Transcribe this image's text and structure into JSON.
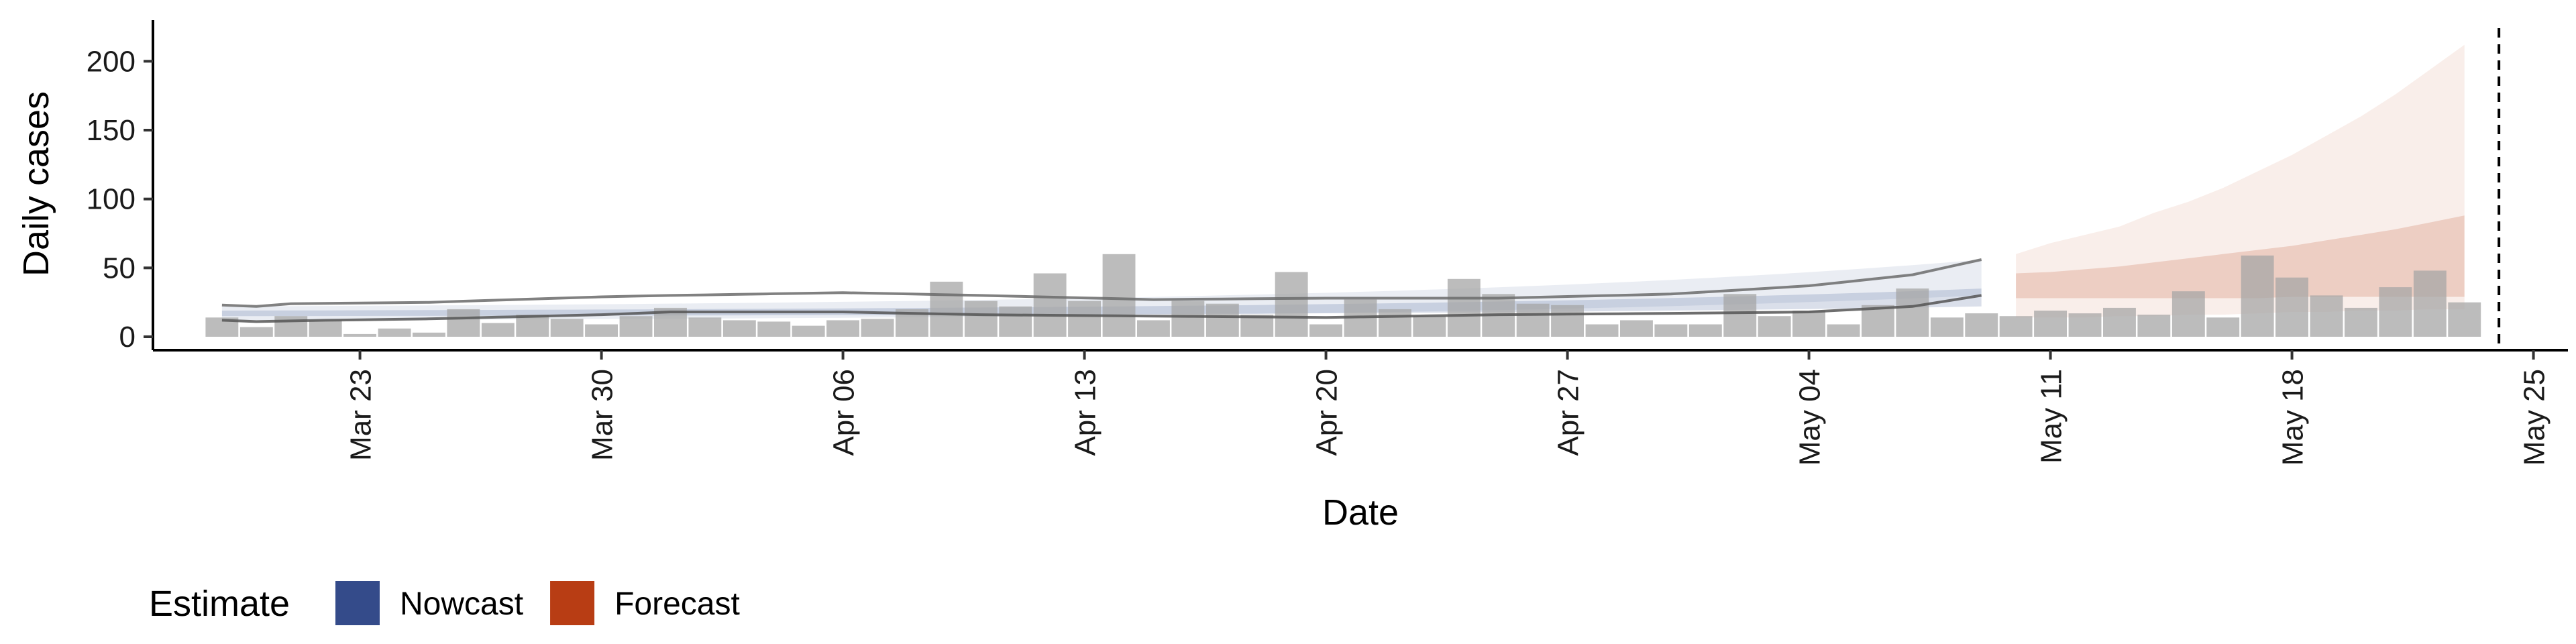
{
  "chart_data": {
    "type": "bar",
    "xlabel": "Date",
    "ylabel": "Daily cases",
    "ylim": [
      0,
      225
    ],
    "y_ticks": [
      0,
      50,
      100,
      150,
      200
    ],
    "x_range": [
      "2020-03-17",
      "2020-05-26"
    ],
    "x_ticks": [
      {
        "date": "2020-03-23",
        "label": "Mar 23"
      },
      {
        "date": "2020-03-30",
        "label": "Mar 30"
      },
      {
        "date": "2020-04-06",
        "label": "Apr 06"
      },
      {
        "date": "2020-04-13",
        "label": "Apr 13"
      },
      {
        "date": "2020-04-20",
        "label": "Apr 20"
      },
      {
        "date": "2020-04-27",
        "label": "Apr 27"
      },
      {
        "date": "2020-05-04",
        "label": "May 04"
      },
      {
        "date": "2020-05-11",
        "label": "May 11"
      },
      {
        "date": "2020-05-18",
        "label": "May 18"
      },
      {
        "date": "2020-05-25",
        "label": "May 25"
      }
    ],
    "reference_line_date": "2020-05-24",
    "bar_color": "#a6a6a6",
    "bars": [
      {
        "date": "2020-03-19",
        "value": 14
      },
      {
        "date": "2020-03-20",
        "value": 7
      },
      {
        "date": "2020-03-21",
        "value": 15
      },
      {
        "date": "2020-03-22",
        "value": 12
      },
      {
        "date": "2020-03-23",
        "value": 2
      },
      {
        "date": "2020-03-24",
        "value": 6
      },
      {
        "date": "2020-03-25",
        "value": 3
      },
      {
        "date": "2020-03-26",
        "value": 20
      },
      {
        "date": "2020-03-27",
        "value": 10
      },
      {
        "date": "2020-03-28",
        "value": 16
      },
      {
        "date": "2020-03-29",
        "value": 13
      },
      {
        "date": "2020-03-30",
        "value": 9
      },
      {
        "date": "2020-03-31",
        "value": 15
      },
      {
        "date": "2020-04-01",
        "value": 21
      },
      {
        "date": "2020-04-02",
        "value": 14
      },
      {
        "date": "2020-04-03",
        "value": 12
      },
      {
        "date": "2020-04-04",
        "value": 11
      },
      {
        "date": "2020-04-05",
        "value": 8
      },
      {
        "date": "2020-04-06",
        "value": 12
      },
      {
        "date": "2020-04-07",
        "value": 13
      },
      {
        "date": "2020-04-08",
        "value": 20
      },
      {
        "date": "2020-04-09",
        "value": 40
      },
      {
        "date": "2020-04-10",
        "value": 26
      },
      {
        "date": "2020-04-11",
        "value": 22
      },
      {
        "date": "2020-04-12",
        "value": 46
      },
      {
        "date": "2020-04-13",
        "value": 26
      },
      {
        "date": "2020-04-14",
        "value": 60
      },
      {
        "date": "2020-04-15",
        "value": 12
      },
      {
        "date": "2020-04-16",
        "value": 26
      },
      {
        "date": "2020-04-17",
        "value": 24
      },
      {
        "date": "2020-04-18",
        "value": 16
      },
      {
        "date": "2020-04-19",
        "value": 47
      },
      {
        "date": "2020-04-20",
        "value": 9
      },
      {
        "date": "2020-04-21",
        "value": 27
      },
      {
        "date": "2020-04-22",
        "value": 20
      },
      {
        "date": "2020-04-23",
        "value": 15
      },
      {
        "date": "2020-04-24",
        "value": 42
      },
      {
        "date": "2020-04-25",
        "value": 31
      },
      {
        "date": "2020-04-26",
        "value": 24
      },
      {
        "date": "2020-04-27",
        "value": 23
      },
      {
        "date": "2020-04-28",
        "value": 9
      },
      {
        "date": "2020-04-29",
        "value": 12
      },
      {
        "date": "2020-04-30",
        "value": 9
      },
      {
        "date": "2020-05-01",
        "value": 9
      },
      {
        "date": "2020-05-02",
        "value": 31
      },
      {
        "date": "2020-05-03",
        "value": 15
      },
      {
        "date": "2020-05-04",
        "value": 19
      },
      {
        "date": "2020-05-05",
        "value": 9
      },
      {
        "date": "2020-05-06",
        "value": 23
      },
      {
        "date": "2020-05-07",
        "value": 35
      },
      {
        "date": "2020-05-08",
        "value": 14
      },
      {
        "date": "2020-05-09",
        "value": 17
      },
      {
        "date": "2020-05-10",
        "value": 15
      },
      {
        "date": "2020-05-11",
        "value": 19
      },
      {
        "date": "2020-05-12",
        "value": 17
      },
      {
        "date": "2020-05-13",
        "value": 21
      },
      {
        "date": "2020-05-14",
        "value": 16
      },
      {
        "date": "2020-05-15",
        "value": 33
      },
      {
        "date": "2020-05-16",
        "value": 14
      },
      {
        "date": "2020-05-17",
        "value": 59
      },
      {
        "date": "2020-05-18",
        "value": 43
      },
      {
        "date": "2020-05-19",
        "value": 30
      },
      {
        "date": "2020-05-20",
        "value": 21
      },
      {
        "date": "2020-05-21",
        "value": 36
      },
      {
        "date": "2020-05-22",
        "value": 48
      },
      {
        "date": "2020-05-23",
        "value": 25
      }
    ],
    "nowcast": {
      "name": "Nowcast",
      "color": "#344b8a",
      "start": "2020-03-19",
      "end": "2020-05-09",
      "outer_lower": [
        12,
        30
      ],
      "outer_upper": [
        22,
        56
      ],
      "inner_lower": [
        15,
        22
      ],
      "inner_upper": [
        19,
        35
      ]
    },
    "forecast": {
      "name": "Forecast",
      "color": "#b83d14",
      "start": "2020-05-10",
      "end": "2020-05-23",
      "outer": [
        {
          "date": "2020-05-10",
          "lower": 14,
          "upper": 60
        },
        {
          "date": "2020-05-11",
          "lower": 14,
          "upper": 68
        },
        {
          "date": "2020-05-12",
          "lower": 14,
          "upper": 74
        },
        {
          "date": "2020-05-13",
          "lower": 15,
          "upper": 80
        },
        {
          "date": "2020-05-14",
          "lower": 15,
          "upper": 90
        },
        {
          "date": "2020-05-15",
          "lower": 16,
          "upper": 98
        },
        {
          "date": "2020-05-16",
          "lower": 16,
          "upper": 108
        },
        {
          "date": "2020-05-17",
          "lower": 17,
          "upper": 120
        },
        {
          "date": "2020-05-18",
          "lower": 18,
          "upper": 132
        },
        {
          "date": "2020-05-19",
          "lower": 18,
          "upper": 146
        },
        {
          "date": "2020-05-20",
          "lower": 19,
          "upper": 160
        },
        {
          "date": "2020-05-21",
          "lower": 19,
          "upper": 176
        },
        {
          "date": "2020-05-22",
          "lower": 20,
          "upper": 194
        },
        {
          "date": "2020-05-23",
          "lower": 20,
          "upper": 212
        }
      ],
      "inner": [
        {
          "date": "2020-05-10",
          "lower": 28,
          "upper": 46
        },
        {
          "date": "2020-05-11",
          "lower": 28,
          "upper": 47
        },
        {
          "date": "2020-05-12",
          "lower": 28,
          "upper": 49
        },
        {
          "date": "2020-05-13",
          "lower": 28,
          "upper": 51
        },
        {
          "date": "2020-05-14",
          "lower": 28,
          "upper": 54
        },
        {
          "date": "2020-05-15",
          "lower": 28,
          "upper": 57
        },
        {
          "date": "2020-05-16",
          "lower": 28,
          "upper": 60
        },
        {
          "date": "2020-05-17",
          "lower": 28,
          "upper": 63
        },
        {
          "date": "2020-05-18",
          "lower": 29,
          "upper": 66
        },
        {
          "date": "2020-05-19",
          "lower": 29,
          "upper": 70
        },
        {
          "date": "2020-05-20",
          "lower": 29,
          "upper": 74
        },
        {
          "date": "2020-05-21",
          "lower": 29,
          "upper": 78
        },
        {
          "date": "2020-05-22",
          "lower": 29,
          "upper": 83
        },
        {
          "date": "2020-05-23",
          "lower": 29,
          "upper": 88
        }
      ]
    },
    "upper_line": [
      {
        "date": "2020-03-19",
        "value": 23
      },
      {
        "date": "2020-03-20",
        "value": 22
      },
      {
        "date": "2020-03-21",
        "value": 24
      },
      {
        "date": "2020-03-25",
        "value": 25
      },
      {
        "date": "2020-03-30",
        "value": 29
      },
      {
        "date": "2020-04-01",
        "value": 30
      },
      {
        "date": "2020-04-06",
        "value": 32
      },
      {
        "date": "2020-04-10",
        "value": 30
      },
      {
        "date": "2020-04-15",
        "value": 27
      },
      {
        "date": "2020-04-20",
        "value": 28
      },
      {
        "date": "2020-04-25",
        "value": 28
      },
      {
        "date": "2020-04-30",
        "value": 31
      },
      {
        "date": "2020-05-04",
        "value": 37
      },
      {
        "date": "2020-05-07",
        "value": 45
      },
      {
        "date": "2020-05-09",
        "value": 56
      }
    ],
    "lower_line": [
      {
        "date": "2020-03-19",
        "value": 12
      },
      {
        "date": "2020-03-20",
        "value": 11
      },
      {
        "date": "2020-03-22",
        "value": 12
      },
      {
        "date": "2020-03-25",
        "value": 13
      },
      {
        "date": "2020-03-30",
        "value": 16
      },
      {
        "date": "2020-04-01",
        "value": 18
      },
      {
        "date": "2020-04-06",
        "value": 18
      },
      {
        "date": "2020-04-10",
        "value": 16
      },
      {
        "date": "2020-04-15",
        "value": 15
      },
      {
        "date": "2020-04-20",
        "value": 14
      },
      {
        "date": "2020-04-25",
        "value": 16
      },
      {
        "date": "2020-04-30",
        "value": 17
      },
      {
        "date": "2020-05-04",
        "value": 18
      },
      {
        "date": "2020-05-07",
        "value": 22
      },
      {
        "date": "2020-05-09",
        "value": 30
      }
    ],
    "legend": {
      "title": "Estimate",
      "placement": "bottom-left",
      "items": [
        {
          "label": "Nowcast",
          "color": "#344b8a"
        },
        {
          "label": "Forecast",
          "color": "#b83d14"
        }
      ]
    }
  }
}
